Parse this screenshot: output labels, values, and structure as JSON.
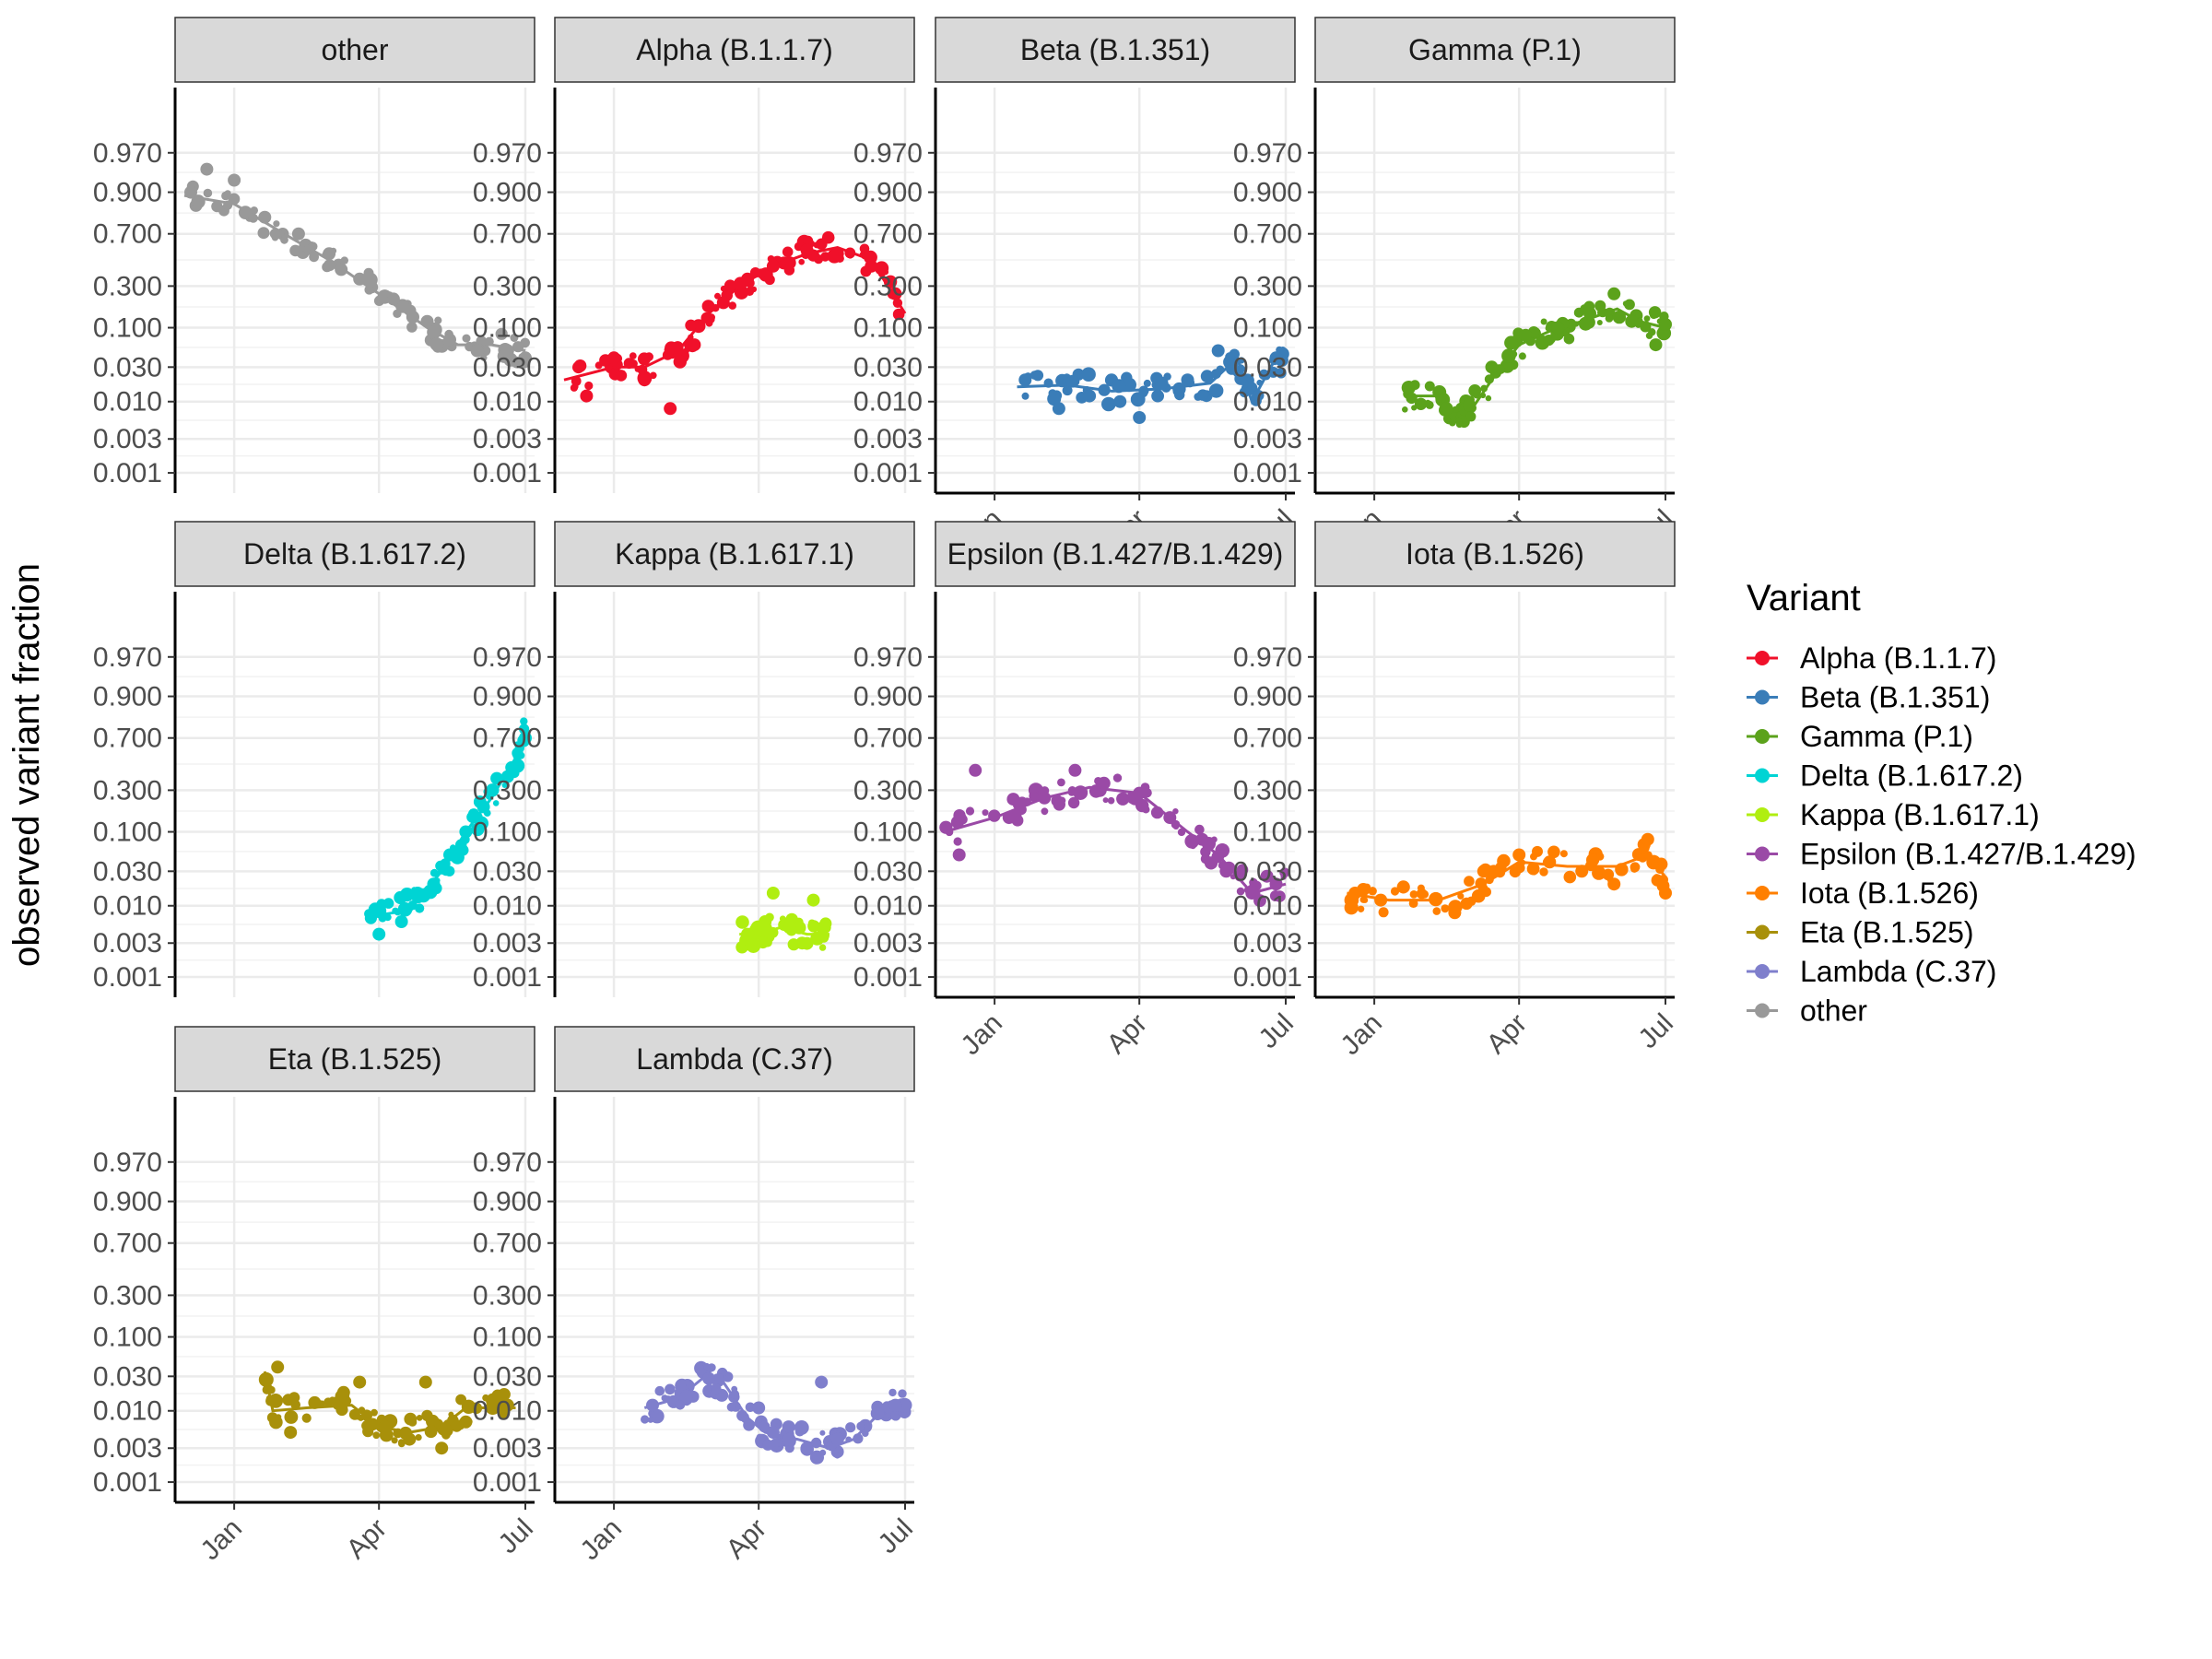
{
  "chart_data": {
    "type": "scatter",
    "ylabel": "observed variant fraction",
    "y_scale": "logit",
    "y_ticks": [
      "0.001",
      "0.003",
      "0.010",
      "0.030",
      "0.100",
      "0.300",
      "0.700",
      "0.900",
      "0.970"
    ],
    "y_tick_values": [
      0.001,
      0.003,
      0.01,
      0.03,
      0.1,
      0.3,
      0.7,
      0.9,
      0.97
    ],
    "x_ticks": [
      "Jan",
      "Apr",
      "Jul"
    ],
    "x_tick_values": [
      "2021-01-01",
      "2021-04-01",
      "2021-07-01"
    ],
    "xlim": [
      "2020-12-01",
      "2021-07-01"
    ],
    "grid": true,
    "legend": {
      "title": "Variant",
      "placement": "right",
      "entries": [
        {
          "label": "Alpha (B.1.1.7)",
          "color": "#F0102A"
        },
        {
          "label": "Beta (B.1.351)",
          "color": "#3A7DB8"
        },
        {
          "label": "Gamma (P.1)",
          "color": "#5BA21B"
        },
        {
          "label": "Delta (B.1.617.2)",
          "color": "#00D4D4"
        },
        {
          "label": "Kappa (B.1.617.1)",
          "color": "#B0EE10"
        },
        {
          "label": "Epsilon (B.1.427/B.1.429)",
          "color": "#9A4AA6"
        },
        {
          "label": "Iota (B.1.526)",
          "color": "#FF7F00"
        },
        {
          "label": "Eta (B.1.525)",
          "color": "#A8900A"
        },
        {
          "label": "Lambda (C.37)",
          "color": "#7F7FCC"
        },
        {
          "label": "other",
          "color": "#999999"
        }
      ]
    },
    "panels": [
      {
        "strip": "other",
        "color": "#999999",
        "trend": [
          [
            "2020-12-01",
            0.89
          ],
          [
            "2021-01-01",
            0.86
          ],
          [
            "2021-02-01",
            0.7
          ],
          [
            "2021-03-01",
            0.5
          ],
          [
            "2021-04-01",
            0.25
          ],
          [
            "2021-05-01",
            0.1
          ],
          [
            "2021-05-20",
            0.06
          ],
          [
            "2021-06-10",
            0.06
          ],
          [
            "2021-07-01",
            0.05
          ]
        ],
        "points": [
          [
            "2020-12-05",
            0.9
          ],
          [
            "2020-12-15",
            0.95
          ],
          [
            "2021-01-01",
            0.93
          ],
          [
            "2021-01-20",
            0.8
          ],
          [
            "2021-02-10",
            0.7
          ],
          [
            "2021-03-01",
            0.55
          ],
          [
            "2021-03-20",
            0.35
          ],
          [
            "2021-04-10",
            0.22
          ],
          [
            "2021-05-01",
            0.12
          ],
          [
            "2021-05-15",
            0.07
          ],
          [
            "2021-06-01",
            0.05
          ],
          [
            "2021-06-20",
            0.05
          ],
          [
            "2021-07-01",
            0.04
          ]
        ]
      },
      {
        "strip": "Alpha (B.1.1.7)",
        "color": "#F0102A",
        "trend": [
          [
            "2020-12-01",
            0.02
          ],
          [
            "2021-01-01",
            0.03
          ],
          [
            "2021-01-20",
            0.03
          ],
          [
            "2021-02-10",
            0.05
          ],
          [
            "2021-03-01",
            0.15
          ],
          [
            "2021-03-20",
            0.3
          ],
          [
            "2021-04-10",
            0.45
          ],
          [
            "2021-05-01",
            0.55
          ],
          [
            "2021-05-20",
            0.6
          ],
          [
            "2021-06-10",
            0.5
          ],
          [
            "2021-07-01",
            0.15
          ]
        ],
        "points": [
          [
            "2020-12-15",
            0.012
          ],
          [
            "2021-01-01",
            0.04
          ],
          [
            "2021-01-20",
            0.02
          ],
          [
            "2021-02-05",
            0.008
          ],
          [
            "2021-02-20",
            0.06
          ],
          [
            "2021-03-10",
            0.2
          ],
          [
            "2021-03-25",
            0.35
          ],
          [
            "2021-04-10",
            0.45
          ],
          [
            "2021-05-01",
            0.58
          ],
          [
            "2021-05-20",
            0.55
          ],
          [
            "2021-06-10",
            0.45
          ],
          [
            "2021-06-25",
            0.25
          ]
        ]
      },
      {
        "strip": "Beta (B.1.351)",
        "color": "#3A7DB8",
        "trend": [
          [
            "2021-01-15",
            0.016
          ],
          [
            "2021-02-15",
            0.017
          ],
          [
            "2021-03-15",
            0.014
          ],
          [
            "2021-04-15",
            0.015
          ],
          [
            "2021-05-15",
            0.018
          ],
          [
            "2021-06-01",
            0.04
          ],
          [
            "2021-06-10",
            0.01
          ],
          [
            "2021-06-25",
            0.04
          ],
          [
            "2021-07-01",
            0.035
          ]
        ],
        "points": [
          [
            "2021-01-20",
            0.02
          ],
          [
            "2021-02-10",
            0.008
          ],
          [
            "2021-03-01",
            0.012
          ],
          [
            "2021-03-20",
            0.01
          ],
          [
            "2021-04-01",
            0.006
          ],
          [
            "2021-04-15",
            0.018
          ],
          [
            "2021-05-01",
            0.02
          ],
          [
            "2021-05-20",
            0.05
          ],
          [
            "2021-06-25",
            0.04
          ]
        ]
      },
      {
        "strip": "Gamma (P.1)",
        "color": "#5BA21B",
        "trend": [
          [
            "2021-01-20",
            0.012
          ],
          [
            "2021-02-10",
            0.012
          ],
          [
            "2021-02-20",
            0.006
          ],
          [
            "2021-03-01",
            0.007
          ],
          [
            "2021-03-15",
            0.02
          ],
          [
            "2021-04-01",
            0.06
          ],
          [
            "2021-04-20",
            0.09
          ],
          [
            "2021-05-10",
            0.12
          ],
          [
            "2021-06-01",
            0.17
          ],
          [
            "2021-06-15",
            0.12
          ],
          [
            "2021-07-01",
            0.1
          ]
        ],
        "points": [
          [
            "2021-02-15",
            0.008
          ],
          [
            "2021-03-01",
            0.009
          ],
          [
            "2021-03-15",
            0.03
          ],
          [
            "2021-04-05",
            0.08
          ],
          [
            "2021-04-25",
            0.1
          ],
          [
            "2021-05-15",
            0.15
          ],
          [
            "2021-05-30",
            0.25
          ],
          [
            "2021-06-10",
            0.12
          ],
          [
            "2021-06-25",
            0.06
          ],
          [
            "2021-07-01",
            0.11
          ]
        ]
      },
      {
        "strip": "Delta (B.1.617.2)",
        "color": "#00D4D4",
        "trend": [
          [
            "2021-03-25",
            0.007
          ],
          [
            "2021-04-10",
            0.008
          ],
          [
            "2021-04-25",
            0.012
          ],
          [
            "2021-05-10",
            0.03
          ],
          [
            "2021-05-25",
            0.1
          ],
          [
            "2021-06-10",
            0.25
          ],
          [
            "2021-06-25",
            0.55
          ],
          [
            "2021-07-01",
            0.75
          ]
        ],
        "points": [
          [
            "2021-04-01",
            0.004
          ],
          [
            "2021-04-15",
            0.006
          ],
          [
            "2021-04-25",
            0.015
          ],
          [
            "2021-05-05",
            0.02
          ],
          [
            "2021-05-15",
            0.05
          ],
          [
            "2021-05-25",
            0.1
          ],
          [
            "2021-06-05",
            0.2
          ],
          [
            "2021-06-20",
            0.4
          ],
          [
            "2021-07-01",
            0.7
          ]
        ]
      },
      {
        "strip": "Kappa (B.1.617.1)",
        "color": "#B0EE10",
        "trend": [
          [
            "2021-03-20",
            0.004
          ],
          [
            "2021-04-01",
            0.004
          ],
          [
            "2021-04-15",
            0.005
          ],
          [
            "2021-05-01",
            0.004
          ],
          [
            "2021-05-15",
            0.004
          ]
        ],
        "points": [
          [
            "2021-03-25",
            0.004
          ],
          [
            "2021-04-05",
            0.006
          ],
          [
            "2021-04-10",
            0.015
          ],
          [
            "2021-04-20",
            0.005
          ],
          [
            "2021-04-28",
            0.003
          ],
          [
            "2021-05-05",
            0.012
          ],
          [
            "2021-05-12",
            0.005
          ]
        ]
      },
      {
        "strip": "Epsilon (B.1.427/B.1.429)",
        "color": "#9A4AA6",
        "trend": [
          [
            "2020-12-01",
            0.1
          ],
          [
            "2021-01-01",
            0.15
          ],
          [
            "2021-02-01",
            0.25
          ],
          [
            "2021-03-01",
            0.32
          ],
          [
            "2021-04-01",
            0.28
          ],
          [
            "2021-05-01",
            0.1
          ],
          [
            "2021-05-20",
            0.05
          ],
          [
            "2021-06-10",
            0.015
          ],
          [
            "2021-07-01",
            0.02
          ]
        ],
        "points": [
          [
            "2020-12-10",
            0.05
          ],
          [
            "2020-12-20",
            0.45
          ],
          [
            "2021-01-10",
            0.15
          ],
          [
            "2021-02-01",
            0.25
          ],
          [
            "2021-02-20",
            0.45
          ],
          [
            "2021-03-10",
            0.35
          ],
          [
            "2021-04-01",
            0.28
          ],
          [
            "2021-04-20",
            0.15
          ],
          [
            "2021-05-10",
            0.08
          ],
          [
            "2021-05-25",
            0.03
          ],
          [
            "2021-06-10",
            0.015
          ],
          [
            "2021-06-25",
            0.02
          ]
        ]
      },
      {
        "strip": "Iota (B.1.526)",
        "color": "#FF7F00",
        "trend": [
          [
            "2020-12-15",
            0.015
          ],
          [
            "2021-01-10",
            0.012
          ],
          [
            "2021-02-10",
            0.012
          ],
          [
            "2021-03-10",
            0.02
          ],
          [
            "2021-04-01",
            0.04
          ],
          [
            "2021-05-01",
            0.035
          ],
          [
            "2021-06-01",
            0.035
          ],
          [
            "2021-06-20",
            0.05
          ],
          [
            "2021-07-01",
            0.025
          ]
        ],
        "points": [
          [
            "2020-12-20",
            0.015
          ],
          [
            "2021-01-05",
            0.012
          ],
          [
            "2021-02-20",
            0.008
          ],
          [
            "2021-03-10",
            0.03
          ],
          [
            "2021-04-01",
            0.05
          ],
          [
            "2021-04-20",
            0.04
          ],
          [
            "2021-05-10",
            0.03
          ],
          [
            "2021-05-30",
            0.02
          ],
          [
            "2021-06-20",
            0.08
          ],
          [
            "2021-07-01",
            0.015
          ]
        ]
      },
      {
        "strip": "Eta (B.1.525)",
        "color": "#A8900A",
        "trend": [
          [
            "2021-01-20",
            0.035
          ],
          [
            "2021-01-25",
            0.01
          ],
          [
            "2021-02-15",
            0.011
          ],
          [
            "2021-03-15",
            0.012
          ],
          [
            "2021-04-01",
            0.006
          ],
          [
            "2021-04-20",
            0.005
          ],
          [
            "2021-05-10",
            0.006
          ],
          [
            "2021-05-25",
            0.011
          ],
          [
            "2021-06-25",
            0.011
          ]
        ],
        "points": [
          [
            "2021-01-28",
            0.04
          ],
          [
            "2021-02-05",
            0.005
          ],
          [
            "2021-02-20",
            0.013
          ],
          [
            "2021-03-10",
            0.018
          ],
          [
            "2021-03-20",
            0.025
          ],
          [
            "2021-04-05",
            0.006
          ],
          [
            "2021-04-20",
            0.004
          ],
          [
            "2021-04-30",
            0.025
          ],
          [
            "2021-05-10",
            0.003
          ],
          [
            "2021-05-25",
            0.007
          ],
          [
            "2021-06-20",
            0.012
          ]
        ]
      },
      {
        "strip": "Lambda (C.37)",
        "color": "#7F7FCC",
        "trend": [
          [
            "2021-01-20",
            0.011
          ],
          [
            "2021-02-10",
            0.015
          ],
          [
            "2021-02-25",
            0.028
          ],
          [
            "2021-03-10",
            0.025
          ],
          [
            "2021-03-25",
            0.008
          ],
          [
            "2021-04-05",
            0.005
          ],
          [
            "2021-04-25",
            0.004
          ],
          [
            "2021-05-15",
            0.003
          ],
          [
            "2021-05-30",
            0.004
          ],
          [
            "2021-06-20",
            0.012
          ],
          [
            "2021-07-01",
            0.012
          ]
        ],
        "points": [
          [
            "2021-01-25",
            0.012
          ],
          [
            "2021-02-15",
            0.016
          ],
          [
            "2021-03-01",
            0.028
          ],
          [
            "2021-04-01",
            0.011
          ],
          [
            "2021-04-10",
            0.005
          ],
          [
            "2021-04-20",
            0.004
          ],
          [
            "2021-05-01",
            0.003
          ],
          [
            "2021-05-10",
            0.025
          ],
          [
            "2021-05-20",
            0.004
          ],
          [
            "2021-06-25",
            0.012
          ]
        ]
      }
    ]
  }
}
